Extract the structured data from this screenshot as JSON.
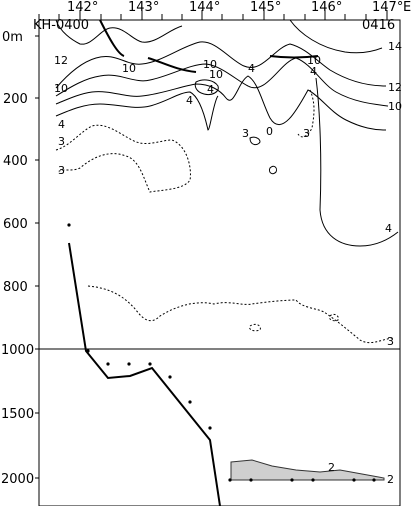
{
  "diagram": {
    "type": "oceanographic-section",
    "station_start": "KH-0400",
    "station_end": "0416",
    "longitude_ticks": [
      "142°",
      "143°",
      "144°",
      "145°",
      "146°",
      "147°"
    ],
    "longitude_unit_label": "E",
    "depth_ticks_upper": [
      "0m",
      "200",
      "400",
      "600",
      "800",
      "1000"
    ],
    "depth_ticks_lower": [
      "1500",
      "2000"
    ],
    "contour_labels": [
      {
        "value": "12",
        "id": "c12-left"
      },
      {
        "value": "10",
        "id": "c10-left"
      },
      {
        "value": "10",
        "id": "c10-mid-a"
      },
      {
        "value": "10",
        "id": "c10-mid-b"
      },
      {
        "value": "10",
        "id": "c10-right-a"
      },
      {
        "value": "10",
        "id": "c10-right-b"
      },
      {
        "value": "14",
        "id": "c14-right"
      },
      {
        "value": "12",
        "id": "c12-right"
      },
      {
        "value": "10",
        "id": "c10-right-c"
      },
      {
        "value": "4",
        "id": "c4-left"
      },
      {
        "value": "4",
        "id": "c4-mid-a"
      },
      {
        "value": "4",
        "id": "c4-mid-b"
      },
      {
        "value": "4",
        "id": "c4-mid-c"
      },
      {
        "value": "4",
        "id": "c4-right-a"
      },
      {
        "value": "4",
        "id": "c4-deep"
      },
      {
        "value": "3",
        "id": "c3-left-a"
      },
      {
        "value": "3",
        "id": "c3-left-b"
      },
      {
        "value": "3",
        "id": "c3-mid"
      },
      {
        "value": "0",
        "id": "c0-mid"
      },
      {
        "value": "3",
        "id": "c3-right"
      },
      {
        "value": "3",
        "id": "c3-deep"
      },
      {
        "value": "2",
        "id": "c2-bottom-a"
      },
      {
        "value": "2",
        "id": "c2-bottom-b"
      }
    ]
  }
}
